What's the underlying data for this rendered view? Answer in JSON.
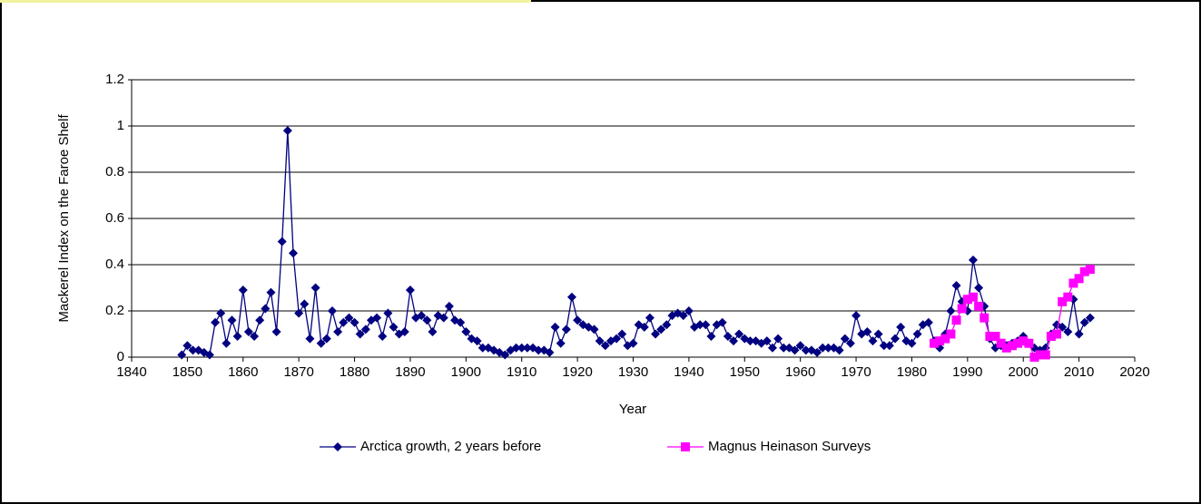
{
  "chart_data": {
    "type": "line",
    "x_label": "Year",
    "y_label": "Mackerel Index on the Faroe Shelf",
    "xlim": [
      1840,
      2020
    ],
    "xticks": [
      1840,
      1850,
      1860,
      1870,
      1880,
      1890,
      1900,
      1910,
      1920,
      1930,
      1940,
      1950,
      1960,
      1970,
      1980,
      1990,
      2000,
      2010,
      2020
    ],
    "ylim": [
      0,
      1.2
    ],
    "yticks": [
      0,
      0.2,
      0.4,
      0.6,
      0.8,
      1,
      1.2
    ],
    "grid": true,
    "legend": "bottom",
    "series": [
      {
        "name": "Arctica growth, 2 years before",
        "color": "#000080",
        "marker": "diamond",
        "x": [
          1849,
          1850,
          1851,
          1852,
          1853,
          1854,
          1855,
          1856,
          1857,
          1858,
          1859,
          1860,
          1861,
          1862,
          1863,
          1864,
          1865,
          1866,
          1867,
          1868,
          1869,
          1870,
          1871,
          1872,
          1873,
          1874,
          1875,
          1876,
          1877,
          1878,
          1879,
          1880,
          1881,
          1882,
          1883,
          1884,
          1885,
          1886,
          1887,
          1888,
          1889,
          1890,
          1891,
          1892,
          1893,
          1894,
          1895,
          1896,
          1897,
          1898,
          1899,
          1900,
          1901,
          1902,
          1903,
          1904,
          1905,
          1906,
          1907,
          1908,
          1909,
          1910,
          1911,
          1912,
          1913,
          1914,
          1915,
          1916,
          1917,
          1918,
          1919,
          1920,
          1921,
          1922,
          1923,
          1924,
          1925,
          1926,
          1927,
          1928,
          1929,
          1930,
          1931,
          1932,
          1933,
          1934,
          1935,
          1936,
          1937,
          1938,
          1939,
          1940,
          1941,
          1942,
          1943,
          1944,
          1945,
          1946,
          1947,
          1948,
          1949,
          1950,
          1951,
          1952,
          1953,
          1954,
          1955,
          1956,
          1957,
          1958,
          1959,
          1960,
          1961,
          1962,
          1963,
          1964,
          1965,
          1966,
          1967,
          1968,
          1969,
          1970,
          1971,
          1972,
          1973,
          1974,
          1975,
          1976,
          1977,
          1978,
          1979,
          1980,
          1981,
          1982,
          1983,
          1984,
          1985,
          1986,
          1987,
          1988,
          1989,
          1990,
          1991,
          1992,
          1993,
          1994,
          1995,
          1996,
          1997,
          1998,
          1999,
          2000,
          2001,
          2002,
          2003,
          2004,
          2005,
          2006,
          2007,
          2008,
          2009,
          2010,
          2011,
          2012
        ],
        "values": [
          0.01,
          0.05,
          0.03,
          0.03,
          0.02,
          0.01,
          0.15,
          0.19,
          0.06,
          0.16,
          0.09,
          0.29,
          0.11,
          0.09,
          0.16,
          0.21,
          0.28,
          0.11,
          0.5,
          0.98,
          0.45,
          0.19,
          0.23,
          0.08,
          0.3,
          0.06,
          0.08,
          0.2,
          0.11,
          0.15,
          0.17,
          0.15,
          0.1,
          0.12,
          0.16,
          0.17,
          0.09,
          0.19,
          0.13,
          0.1,
          0.11,
          0.29,
          0.17,
          0.18,
          0.16,
          0.11,
          0.18,
          0.17,
          0.22,
          0.16,
          0.15,
          0.11,
          0.08,
          0.07,
          0.04,
          0.04,
          0.03,
          0.02,
          0.01,
          0.03,
          0.04,
          0.04,
          0.04,
          0.04,
          0.03,
          0.03,
          0.02,
          0.13,
          0.06,
          0.12,
          0.26,
          0.16,
          0.14,
          0.13,
          0.12,
          0.07,
          0.05,
          0.07,
          0.08,
          0.1,
          0.05,
          0.06,
          0.14,
          0.13,
          0.17,
          0.1,
          0.12,
          0.14,
          0.18,
          0.19,
          0.18,
          0.2,
          0.13,
          0.14,
          0.14,
          0.09,
          0.14,
          0.15,
          0.09,
          0.07,
          0.1,
          0.08,
          0.07,
          0.07,
          0.06,
          0.07,
          0.04,
          0.08,
          0.04,
          0.04,
          0.03,
          0.05,
          0.03,
          0.03,
          0.02,
          0.04,
          0.04,
          0.04,
          0.03,
          0.08,
          0.06,
          0.18,
          0.1,
          0.11,
          0.07,
          0.1,
          0.05,
          0.05,
          0.08,
          0.13,
          0.07,
          0.06,
          0.1,
          0.14,
          0.15,
          0.07,
          0.04,
          0.1,
          0.2,
          0.31,
          0.24,
          0.2,
          0.42,
          0.3,
          0.22,
          0.08,
          0.04,
          0.05,
          0.05,
          0.06,
          0.07,
          0.09,
          0.06,
          0.04,
          0.03,
          0.04,
          0.1,
          0.14,
          0.13,
          0.11,
          0.25,
          0.1,
          0.15,
          0.17
        ]
      },
      {
        "name": "Magnus Heinason Surveys",
        "color": "#ff00ff",
        "marker": "square",
        "x": [
          1984,
          1985,
          1986,
          1987,
          1988,
          1989,
          1990,
          1991,
          1992,
          1993,
          1994,
          1995,
          1996,
          1997,
          1998,
          1999,
          2000,
          2001,
          2002,
          2003,
          2004,
          2005,
          2006,
          2007,
          2008,
          2009,
          2010,
          2011,
          2012
        ],
        "values": [
          0.06,
          0.07,
          0.08,
          0.1,
          0.16,
          0.21,
          0.25,
          0.26,
          0.22,
          0.17,
          0.09,
          0.09,
          0.06,
          0.04,
          0.05,
          0.06,
          0.07,
          0.06,
          0.0,
          0.01,
          0.01,
          0.09,
          0.1,
          0.24,
          0.26,
          0.32,
          0.34,
          0.37,
          0.38
        ]
      }
    ]
  }
}
